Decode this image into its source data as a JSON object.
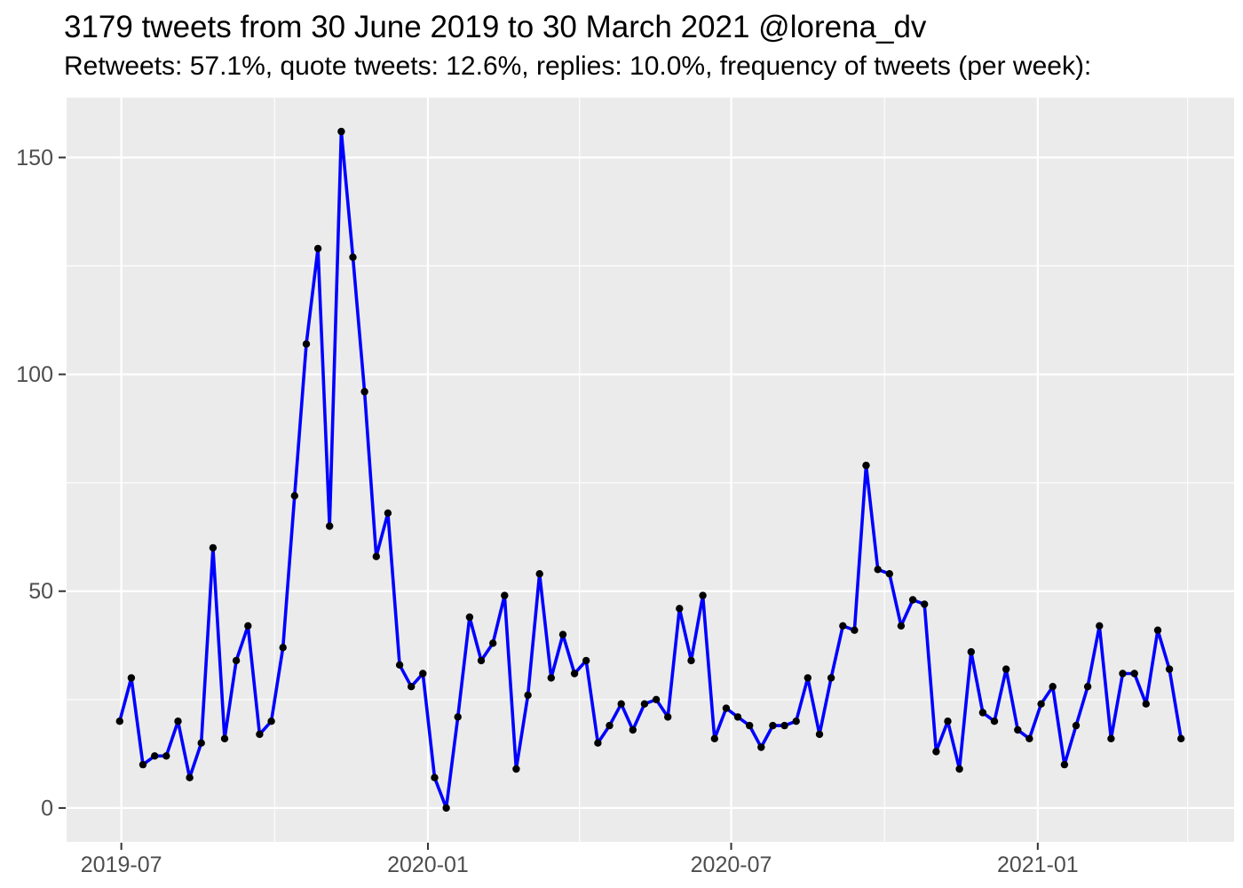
{
  "header": {
    "title": "3179 tweets from 30 June 2019 to 30 March 2021 @lorena_dv",
    "subtitle": "Retweets: 57.1%, quote tweets: 12.6%, replies: 10.0%, frequency of tweets (per week):"
  },
  "chart_data": {
    "type": "line",
    "title": "3179 tweets from 30 June 2019 to 30 March 2021 @lorena_dv",
    "subtitle": "Retweets: 57.1%, quote tweets: 12.6%, replies: 10.0%, frequency of tweets (per week):",
    "series_name": "tweets per week",
    "total_tweets": 3179,
    "retweets_pct": 57.1,
    "quote_tweets_pct": 12.6,
    "replies_pct": 10.0,
    "start_date": "2019-06-30",
    "end_date": "2021-03-28",
    "interval_days": 7,
    "values": [
      20,
      30,
      10,
      12,
      12,
      20,
      7,
      15,
      60,
      16,
      34,
      42,
      17,
      20,
      37,
      72,
      107,
      129,
      65,
      156,
      127,
      96,
      58,
      68,
      33,
      28,
      31,
      7,
      0,
      21,
      44,
      34,
      38,
      49,
      9,
      26,
      54,
      30,
      40,
      31,
      34,
      15,
      19,
      24,
      18,
      24,
      25,
      21,
      46,
      34,
      49,
      16,
      23,
      21,
      19,
      14,
      19,
      19,
      20,
      30,
      17,
      30,
      42,
      41,
      79,
      55,
      54,
      42,
      48,
      47,
      13,
      20,
      9,
      36,
      22,
      20,
      32,
      18,
      16,
      24,
      28,
      10,
      19,
      28,
      42,
      16,
      31,
      31,
      24,
      41,
      32,
      16
    ],
    "xlabel": "",
    "ylabel": "",
    "legend": "none",
    "grid": true,
    "x_axis": {
      "ticks": [
        {
          "date": "2019-07-01",
          "label": "2019-07"
        },
        {
          "date": "2020-01-01",
          "label": "2020-01"
        },
        {
          "date": "2020-07-01",
          "label": "2020-07"
        },
        {
          "date": "2021-01-01",
          "label": "2021-01"
        }
      ],
      "minor_breaks": [
        "2019-10-01",
        "2020-04-01",
        "2020-10-01",
        "2021-04-01"
      ]
    },
    "y_axis": {
      "ticks": [
        {
          "value": 0,
          "label": "0"
        },
        {
          "value": 50,
          "label": "50"
        },
        {
          "value": 100,
          "label": "100"
        },
        {
          "value": 150,
          "label": "150"
        }
      ],
      "minor_breaks": [
        25,
        75,
        125
      ],
      "domain": [
        0,
        156
      ]
    },
    "expansion": 0.05,
    "colors": {
      "line": "#0000FF",
      "point": "#000000",
      "panel_bg": "#EBEBEB",
      "grid_major": "#FFFFFF",
      "grid_minor": "#FFFFFF",
      "axis_text": "#4D4D4D",
      "tick_mark": "#333333",
      "title_text": "#000000"
    }
  }
}
